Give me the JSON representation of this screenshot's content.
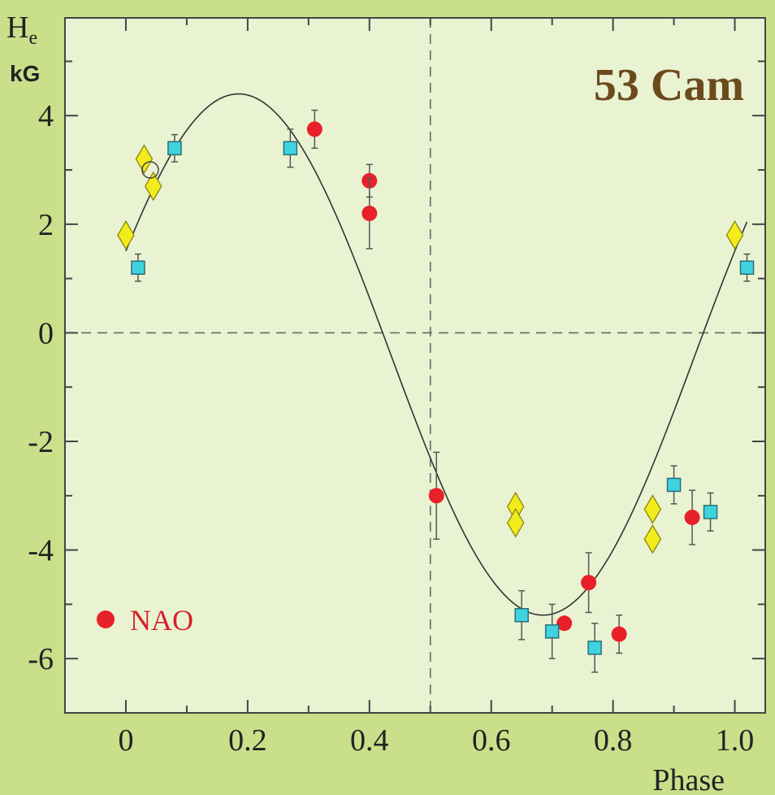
{
  "chart_data": {
    "type": "scatter",
    "title": "53 Cam",
    "ylabel_main": "H",
    "ylabel_sub": "e",
    "yunit": "kG",
    "xlabel": "Phase",
    "xlim": [
      -0.1,
      1.05
    ],
    "ylim": [
      -7,
      5.8
    ],
    "x_ticks": [
      0,
      0.2,
      0.4,
      0.6,
      0.8,
      1.0
    ],
    "x_tick_labels": [
      "0",
      "0.2",
      "0.4",
      "0.6",
      "0.8",
      "1.0"
    ],
    "x_minor_ticks": [
      0.1,
      0.3,
      0.5,
      0.7,
      0.9
    ],
    "y_ticks": [
      -6,
      -4,
      -2,
      0,
      2,
      4
    ],
    "y_tick_labels": [
      "-6",
      "-4",
      "-2",
      "0",
      "2",
      "4"
    ],
    "y_minor_ticks": [
      -5,
      -3,
      -1,
      1,
      3,
      5
    ],
    "reference_lines": {
      "y_zero": 0,
      "x_half": 0.5
    },
    "curve": {
      "type": "sinusoid",
      "mean": -0.4,
      "amplitude": 4.8,
      "phase_of_max": 0.185,
      "x_range": [
        0,
        1.02
      ]
    },
    "colors": {
      "background": "#c9df8a",
      "plot_area": "#e9f3d2",
      "nao": "#e8202a",
      "square": "#3fd3e0",
      "diamond": "#f2ec1c",
      "curve": "#333333",
      "title": "#6b4a1c"
    },
    "series": [
      {
        "name": "NAO",
        "marker": "circle",
        "points": [
          {
            "x": 0.31,
            "y": 3.75,
            "err": 0.35
          },
          {
            "x": 0.4,
            "y": 2.8,
            "err": 0.3
          },
          {
            "x": 0.4,
            "y": 2.2,
            "err": 0.65
          },
          {
            "x": 0.51,
            "y": -3.0,
            "err": 0.8
          },
          {
            "x": 0.72,
            "y": -5.35,
            "err": 0.1
          },
          {
            "x": 0.76,
            "y": -4.6,
            "err": 0.55
          },
          {
            "x": 0.81,
            "y": -5.55,
            "err": 0.35
          },
          {
            "x": 0.93,
            "y": -3.4,
            "err": 0.5
          }
        ]
      },
      {
        "marker": "square",
        "points": [
          {
            "x": 0.02,
            "y": 1.2,
            "err": 0.25
          },
          {
            "x": 0.08,
            "y": 3.4,
            "err": 0.25
          },
          {
            "x": 0.27,
            "y": 3.4,
            "err": 0.35
          },
          {
            "x": 0.65,
            "y": -5.2,
            "err": 0.45
          },
          {
            "x": 0.7,
            "y": -5.5,
            "err": 0.5
          },
          {
            "x": 0.77,
            "y": -5.8,
            "err": 0.45
          },
          {
            "x": 0.9,
            "y": -2.8,
            "err": 0.35
          },
          {
            "x": 0.96,
            "y": -3.3,
            "err": 0.35
          },
          {
            "x": 1.02,
            "y": 1.2,
            "err": 0.25
          }
        ]
      },
      {
        "marker": "diamond",
        "points": [
          {
            "x": 0.0,
            "y": 1.8
          },
          {
            "x": 0.03,
            "y": 3.2
          },
          {
            "x": 0.045,
            "y": 2.7
          },
          {
            "x": 0.64,
            "y": -3.2
          },
          {
            "x": 0.64,
            "y": -3.5
          },
          {
            "x": 0.865,
            "y": -3.25
          },
          {
            "x": 0.865,
            "y": -3.8
          },
          {
            "x": 1.0,
            "y": 1.8
          }
        ]
      },
      {
        "marker": "open-circle",
        "points": [
          {
            "x": 0.04,
            "y": 3.0
          }
        ]
      }
    ],
    "legend": [
      {
        "label": "NAO",
        "marker": "circle"
      }
    ]
  }
}
